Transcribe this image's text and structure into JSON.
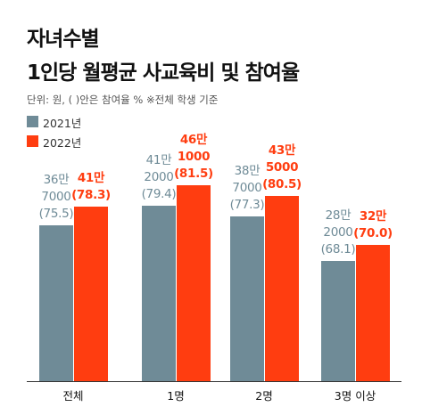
{
  "chart_data": {
    "type": "bar",
    "title": [
      "자녀수별",
      "1인당 월평균 사교육비 및 참여율"
    ],
    "subtitle": "단위: 원, ( )안은 참여율 %  ※전체 학생 기준",
    "categories": [
      "전체",
      "1명",
      "2명",
      "3명 이상"
    ],
    "series": [
      {
        "name": "2021년",
        "color": "#6f8b97",
        "values": [
          367000,
          412000,
          387000,
          282000
        ],
        "value_labels": [
          "36만\n7000",
          "41만\n2000",
          "38만\n7000",
          "28만\n2000"
        ],
        "rates": [
          75.5,
          79.4,
          77.3,
          68.1
        ],
        "rate_labels": [
          "(75.5)",
          "(79.4)",
          "(77.3)",
          "(68.1)"
        ]
      },
      {
        "name": "2022년",
        "color": "#ff3d10",
        "values": [
          410000,
          461000,
          435000,
          320000
        ],
        "value_labels": [
          "41만",
          "46만\n1000",
          "43만\n5000",
          "32만"
        ],
        "rates": [
          78.3,
          81.5,
          80.5,
          70.0
        ],
        "rate_labels": [
          "(78.3)",
          "(81.5)",
          "(80.5)",
          "(70.0)"
        ]
      }
    ]
  }
}
